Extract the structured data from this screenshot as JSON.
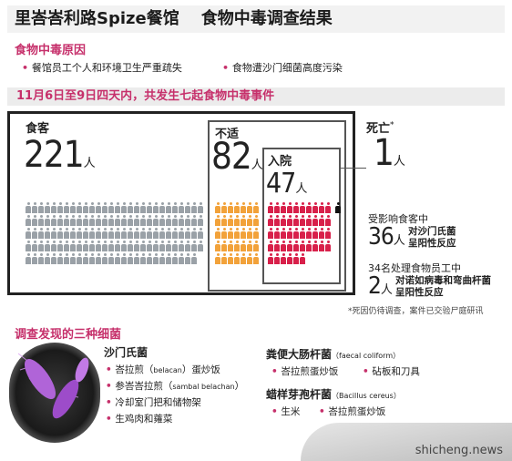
{
  "title": {
    "restaurant": "里峇峇利路Spize餐馆",
    "subject": "食物中毒调查结果"
  },
  "causes": {
    "heading": "食物中毒原因",
    "items": [
      "餐馆员工个人和环境卫生严重疏失",
      "食物遭沙门细菌高度污染"
    ]
  },
  "summary_band": "11月6日至9日四天内，共发生七起食物中毒事件",
  "stats": {
    "diners": {
      "label": "食客",
      "value": "221",
      "unit": "人"
    },
    "unwell": {
      "label": "不适",
      "value": "82",
      "unit": "人"
    },
    "hospital": {
      "label": "入院",
      "value": "47",
      "unit": "人"
    },
    "death": {
      "label": "死亡",
      "mark": "*",
      "value": "1",
      "unit": "人"
    }
  },
  "affected_diners": {
    "heading": "受影响食客中",
    "value": "36",
    "unit": "人",
    "desc_line1": "对沙门氏菌",
    "desc_line2": "呈阳性反应"
  },
  "staff": {
    "heading": "34名处理食物员工中",
    "value": "2",
    "unit": "人",
    "desc_line1": "对诺如病毒和弯曲杆菌",
    "desc_line2": "呈阳性反应"
  },
  "footnote": "*死因仍待调查，案件已交验尸庭研讯",
  "bacteria_section": {
    "heading": "调查发现的三种细菌",
    "salmonella": {
      "name": "沙门氏菌",
      "items": [
        {
          "text": "峇拉煎（",
          "latin": "belacan",
          "text2": "）蛋炒饭"
        },
        {
          "text": "参峇峇拉煎（",
          "latin": "sambal belachan",
          "text2": "）"
        },
        {
          "text": "冷却室门把和储物架",
          "latin": "",
          "text2": ""
        },
        {
          "text": "生鸡肉和蕹菜",
          "latin": "",
          "text2": ""
        }
      ]
    },
    "coliform": {
      "name": "粪便大肠杆菌",
      "latin": "faecal coliform",
      "items": [
        "峇拉煎蛋炒饭",
        "砧板和刀具"
      ]
    },
    "cereus": {
      "name": "蜡样芽孢杆菌",
      "latin": "Bacillus cereus",
      "items": [
        "生米",
        "峇拉煎蛋炒饭"
      ]
    }
  },
  "watermark": "shicheng.news",
  "colors": {
    "accent": "#c6306b",
    "gray_people": "#9aa1a7",
    "orange_people": "#f2a23a",
    "red_people": "#d8204a",
    "death_person": "#111111"
  },
  "icons": [
    "person-icon",
    "bacteria-illustration"
  ],
  "people_counts": {
    "gray": 139,
    "orange": 35,
    "red": 46,
    "dark": 1
  }
}
